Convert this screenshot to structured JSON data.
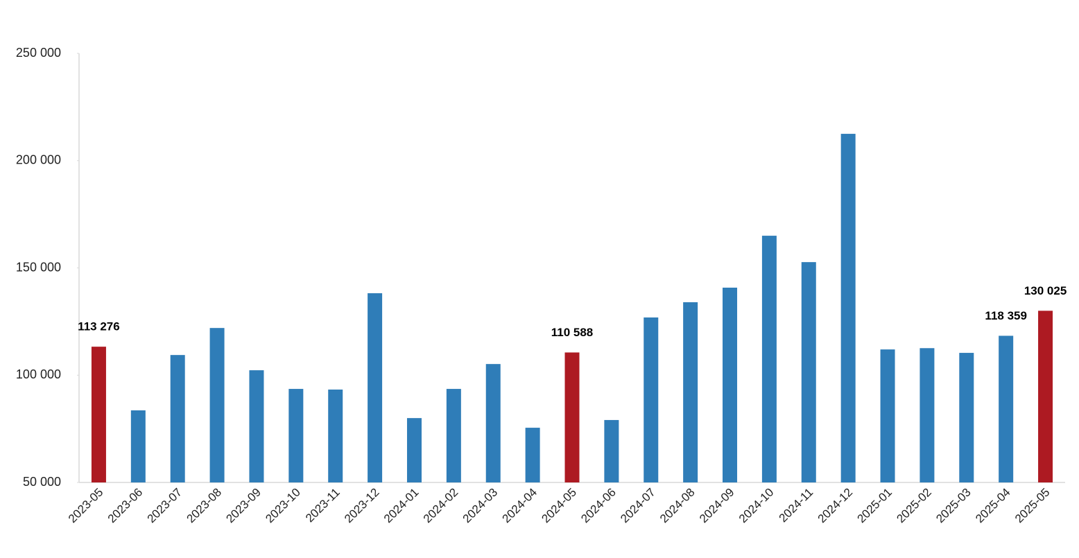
{
  "chart_data": {
    "type": "bar",
    "categories": [
      "2023-05",
      "2023-06",
      "2023-07",
      "2023-08",
      "2023-09",
      "2023-10",
      "2023-11",
      "2023-12",
      "2024-01",
      "2024-02",
      "2024-03",
      "2024-04",
      "2024-05",
      "2024-06",
      "2024-07",
      "2024-08",
      "2024-09",
      "2024-10",
      "2024-11",
      "2024-12",
      "2025-01",
      "2025-02",
      "2025-03",
      "2025-04",
      "2025-05"
    ],
    "values": [
      113276,
      83600,
      109400,
      122000,
      102300,
      93600,
      93300,
      138200,
      80000,
      93600,
      105200,
      75500,
      110588,
      79100,
      126900,
      134000,
      140800,
      165000,
      152700,
      212500,
      112000,
      112600,
      110400,
      118359,
      130025
    ],
    "value_labels": [
      "113 276",
      null,
      null,
      null,
      null,
      null,
      null,
      null,
      null,
      null,
      null,
      null,
      "110 588",
      null,
      null,
      null,
      null,
      null,
      null,
      null,
      null,
      null,
      null,
      "118 359",
      "130 025"
    ],
    "colors": [
      "#ad1a22",
      "#2f7db8",
      "#2f7db8",
      "#2f7db8",
      "#2f7db8",
      "#2f7db8",
      "#2f7db8",
      "#2f7db8",
      "#2f7db8",
      "#2f7db8",
      "#2f7db8",
      "#2f7db8",
      "#ad1a22",
      "#2f7db8",
      "#2f7db8",
      "#2f7db8",
      "#2f7db8",
      "#2f7db8",
      "#2f7db8",
      "#2f7db8",
      "#2f7db8",
      "#2f7db8",
      "#2f7db8",
      "#2f7db8",
      "#ad1a22"
    ],
    "ylim": [
      50000,
      250000
    ],
    "yticks": [
      {
        "value": 50000,
        "label": "50 000"
      },
      {
        "value": 100000,
        "label": "100 000"
      },
      {
        "value": 150000,
        "label": "150 000"
      },
      {
        "value": 200000,
        "label": "200 000"
      },
      {
        "value": 250000,
        "label": "250 000"
      }
    ],
    "grid": false
  }
}
